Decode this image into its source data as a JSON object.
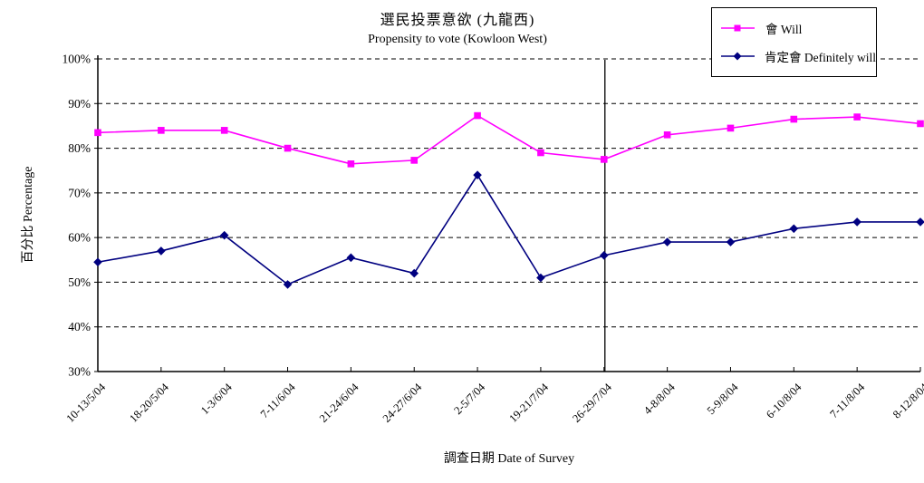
{
  "chart_data": {
    "type": "line",
    "title": "選民投票意欲 (九龍西)",
    "subtitle": "Propensity to vote (Kowloon West)",
    "xlabel": "調查日期 Date of Survey",
    "ylabel": "百分比 Percentage",
    "ylim": [
      30,
      100
    ],
    "ytick_step": 10,
    "ytick_suffix": "%",
    "grid": "horizontal-dashed",
    "legend_position": "top-right",
    "categories": [
      "10-13/5/04",
      "18-20/5/04",
      "1-3/6/04",
      "7-11/6/04",
      "21-24/6/04",
      "24-27/6/04",
      "2-5/7/04",
      "19-21/7/04",
      "26-29/7/04",
      "4-8/8/04",
      "5-9/8/04",
      "6-10/8/04",
      "7-11/8/04",
      "8-12/8/04"
    ],
    "series": [
      {
        "name": "會 Will",
        "color": "#FF00FF",
        "marker": "square",
        "values": [
          83.5,
          84,
          84,
          80,
          76.5,
          77.3,
          87.3,
          79,
          77.5,
          83,
          84.5,
          86.5,
          87,
          85.5
        ]
      },
      {
        "name": "肯定會 Definitely will",
        "color": "#000080",
        "marker": "diamond",
        "values": [
          54.5,
          57,
          60.5,
          49.5,
          55.5,
          52,
          74,
          51,
          56,
          59,
          59,
          62,
          63.5,
          63.5
        ]
      }
    ],
    "annotations": [
      {
        "type": "vertical-line",
        "at_category": "26-29/7/04",
        "color": "#000000"
      }
    ],
    "axis_color": "#000000",
    "gridline_color": "#000000"
  }
}
